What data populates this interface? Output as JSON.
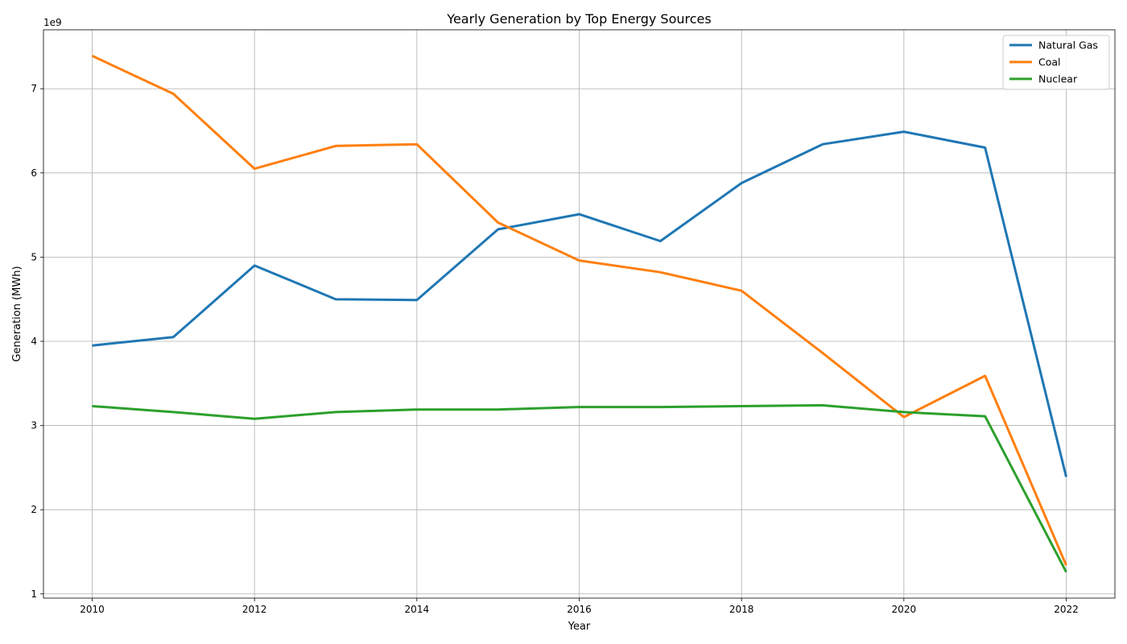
{
  "chart_data": {
    "type": "line",
    "title": "Yearly Generation by Top Energy Sources",
    "xlabel": "Year",
    "ylabel": "Generation (MWh)",
    "y_scale_note": "1e9",
    "x": [
      2010,
      2011,
      2012,
      2013,
      2014,
      2015,
      2016,
      2017,
      2018,
      2019,
      2020,
      2021,
      2022
    ],
    "xlim": [
      2009.4,
      2022.6
    ],
    "ylim": [
      0.95,
      7.7
    ],
    "y_unit_multiplier": 1000000000,
    "x_ticks": [
      2010,
      2012,
      2014,
      2016,
      2018,
      2020,
      2022
    ],
    "y_ticks": [
      1,
      2,
      3,
      4,
      5,
      6,
      7
    ],
    "x_tick_labels": [
      "2010",
      "2012",
      "2014",
      "2016",
      "2018",
      "2020",
      "2022"
    ],
    "y_tick_labels": [
      "1",
      "2",
      "3",
      "4",
      "5",
      "6",
      "7"
    ],
    "grid": true,
    "legend_position": "top-right",
    "series": [
      {
        "name": "Natural Gas",
        "color": "#1f77b4",
        "values": [
          3.95,
          4.05,
          4.9,
          4.5,
          4.49,
          5.33,
          5.51,
          5.19,
          5.88,
          6.34,
          6.49,
          6.3,
          2.39
        ]
      },
      {
        "name": "Coal",
        "color": "#ff7f0e",
        "values": [
          7.39,
          6.94,
          6.05,
          6.32,
          6.34,
          5.41,
          4.96,
          4.82,
          4.6,
          3.86,
          3.1,
          3.59,
          1.34
        ]
      },
      {
        "name": "Nuclear",
        "color": "#2ca02c",
        "values": [
          3.23,
          3.16,
          3.08,
          3.16,
          3.19,
          3.19,
          3.22,
          3.22,
          3.23,
          3.24,
          3.16,
          3.11,
          1.26
        ]
      }
    ]
  }
}
